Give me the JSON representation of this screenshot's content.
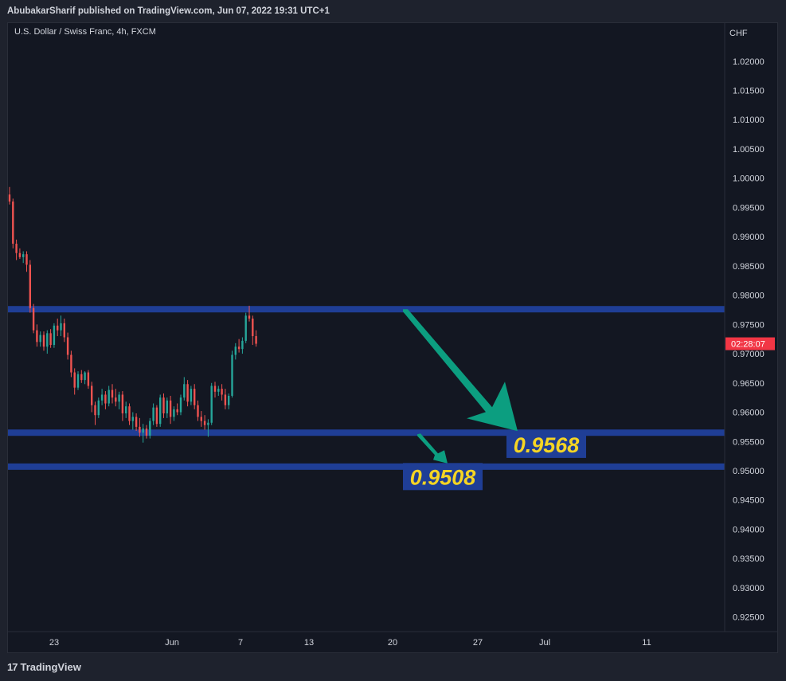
{
  "header": {
    "published_by": "AbubakarSharif published on TradingView.com, Jun 07, 2022 19:31 UTC+1"
  },
  "symbol": {
    "title": "U.S. Dollar / Swiss Franc, 4h, FXCM"
  },
  "footer": {
    "logo_icon": "tradingview-logo-icon",
    "brand": "TradingView",
    "logo_glyph": "17"
  },
  "chart_data": {
    "type": "candlestick",
    "currency": "CHF",
    "ylim": [
      0.9225,
      1.0265
    ],
    "y_ticks": [
      "1.02000",
      "1.01500",
      "1.01000",
      "1.00500",
      "1.00000",
      "0.99500",
      "0.99000",
      "0.98500",
      "0.98000",
      "0.97500",
      "0.97000",
      "0.96500",
      "0.96000",
      "0.95500",
      "0.95000",
      "0.94500",
      "0.94000",
      "0.93500",
      "0.93000",
      "0.92500"
    ],
    "x_ticks": [
      "23",
      "Jun",
      "7",
      "13",
      "20",
      "27",
      "Jul",
      "11"
    ],
    "countdown": {
      "label": "02:28:07",
      "price": 0.9717
    },
    "zones": [
      {
        "price": 0.9776,
        "color": "#1f3e96"
      },
      {
        "price": 0.9565,
        "color": "#1f3e96"
      },
      {
        "price": 0.9507,
        "color": "#1f3e96"
      }
    ],
    "annotations": [
      {
        "text": "0.9568",
        "price": 0.9545
      },
      {
        "text": "0.9508",
        "price": 0.949
      }
    ],
    "colors": {
      "up": "#26a69a",
      "down": "#ef5350",
      "arrow": "#0c9e80",
      "label_text": "#f5d523",
      "label_bg": "#1f3e96"
    },
    "candles": [
      {
        "o": 0.9972,
        "h": 0.9985,
        "l": 0.9955,
        "c": 0.996
      },
      {
        "o": 0.996,
        "h": 0.9965,
        "l": 0.988,
        "c": 0.9888
      },
      {
        "o": 0.9888,
        "h": 0.9895,
        "l": 0.986,
        "c": 0.9872
      },
      {
        "o": 0.9872,
        "h": 0.988,
        "l": 0.9862,
        "c": 0.9865
      },
      {
        "o": 0.9865,
        "h": 0.9875,
        "l": 0.9855,
        "c": 0.987
      },
      {
        "o": 0.987,
        "h": 0.9875,
        "l": 0.984,
        "c": 0.9852
      },
      {
        "o": 0.9852,
        "h": 0.986,
        "l": 0.977,
        "c": 0.9778
      },
      {
        "o": 0.9778,
        "h": 0.9785,
        "l": 0.9735,
        "c": 0.974
      },
      {
        "o": 0.974,
        "h": 0.975,
        "l": 0.9712,
        "c": 0.972
      },
      {
        "o": 0.972,
        "h": 0.9738,
        "l": 0.9712,
        "c": 0.9732
      },
      {
        "o": 0.9732,
        "h": 0.9738,
        "l": 0.9705,
        "c": 0.9712
      },
      {
        "o": 0.9712,
        "h": 0.974,
        "l": 0.97,
        "c": 0.9735
      },
      {
        "o": 0.9735,
        "h": 0.9742,
        "l": 0.971,
        "c": 0.9715
      },
      {
        "o": 0.9715,
        "h": 0.9752,
        "l": 0.971,
        "c": 0.9748
      },
      {
        "o": 0.9748,
        "h": 0.976,
        "l": 0.973,
        "c": 0.974
      },
      {
        "o": 0.974,
        "h": 0.9765,
        "l": 0.973,
        "c": 0.9752
      },
      {
        "o": 0.9752,
        "h": 0.976,
        "l": 0.972,
        "c": 0.9728
      },
      {
        "o": 0.9728,
        "h": 0.9736,
        "l": 0.969,
        "c": 0.9698
      },
      {
        "o": 0.9698,
        "h": 0.9705,
        "l": 0.966,
        "c": 0.9668
      },
      {
        "o": 0.9668,
        "h": 0.9675,
        "l": 0.963,
        "c": 0.9642
      },
      {
        "o": 0.9642,
        "h": 0.967,
        "l": 0.9638,
        "c": 0.9665
      },
      {
        "o": 0.9665,
        "h": 0.9672,
        "l": 0.965,
        "c": 0.9655
      },
      {
        "o": 0.9655,
        "h": 0.967,
        "l": 0.9648,
        "c": 0.9668
      },
      {
        "o": 0.9668,
        "h": 0.9672,
        "l": 0.964,
        "c": 0.9645
      },
      {
        "o": 0.9645,
        "h": 0.9652,
        "l": 0.96,
        "c": 0.9612
      },
      {
        "o": 0.9612,
        "h": 0.9618,
        "l": 0.9578,
        "c": 0.9595
      },
      {
        "o": 0.9595,
        "h": 0.9625,
        "l": 0.959,
        "c": 0.962
      },
      {
        "o": 0.962,
        "h": 0.964,
        "l": 0.9612,
        "c": 0.963
      },
      {
        "o": 0.963,
        "h": 0.9636,
        "l": 0.9605,
        "c": 0.9615
      },
      {
        "o": 0.9615,
        "h": 0.9645,
        "l": 0.961,
        "c": 0.9638
      },
      {
        "o": 0.9638,
        "h": 0.9648,
        "l": 0.9615,
        "c": 0.9625
      },
      {
        "o": 0.9625,
        "h": 0.964,
        "l": 0.961,
        "c": 0.9618
      },
      {
        "o": 0.9618,
        "h": 0.9635,
        "l": 0.9605,
        "c": 0.963
      },
      {
        "o": 0.963,
        "h": 0.9636,
        "l": 0.9585,
        "c": 0.9598
      },
      {
        "o": 0.9598,
        "h": 0.9618,
        "l": 0.959,
        "c": 0.961
      },
      {
        "o": 0.961,
        "h": 0.9615,
        "l": 0.9578,
        "c": 0.9585
      },
      {
        "o": 0.9585,
        "h": 0.96,
        "l": 0.957,
        "c": 0.9592
      },
      {
        "o": 0.9592,
        "h": 0.9598,
        "l": 0.9568,
        "c": 0.9575
      },
      {
        "o": 0.9575,
        "h": 0.959,
        "l": 0.9558,
        "c": 0.9565
      },
      {
        "o": 0.9565,
        "h": 0.958,
        "l": 0.9548,
        "c": 0.9572
      },
      {
        "o": 0.9572,
        "h": 0.9578,
        "l": 0.9555,
        "c": 0.956
      },
      {
        "o": 0.956,
        "h": 0.959,
        "l": 0.9555,
        "c": 0.9585
      },
      {
        "o": 0.9585,
        "h": 0.9615,
        "l": 0.9578,
        "c": 0.9608
      },
      {
        "o": 0.9608,
        "h": 0.9612,
        "l": 0.9575,
        "c": 0.958
      },
      {
        "o": 0.958,
        "h": 0.963,
        "l": 0.9575,
        "c": 0.9625
      },
      {
        "o": 0.9625,
        "h": 0.9632,
        "l": 0.959,
        "c": 0.9598
      },
      {
        "o": 0.9598,
        "h": 0.9625,
        "l": 0.959,
        "c": 0.962
      },
      {
        "o": 0.962,
        "h": 0.9628,
        "l": 0.958,
        "c": 0.9592
      },
      {
        "o": 0.9592,
        "h": 0.961,
        "l": 0.9585,
        "c": 0.9605
      },
      {
        "o": 0.9605,
        "h": 0.9615,
        "l": 0.9595,
        "c": 0.96
      },
      {
        "o": 0.96,
        "h": 0.963,
        "l": 0.9595,
        "c": 0.9625
      },
      {
        "o": 0.9625,
        "h": 0.966,
        "l": 0.962,
        "c": 0.9648
      },
      {
        "o": 0.9648,
        "h": 0.9655,
        "l": 0.961,
        "c": 0.9618
      },
      {
        "o": 0.9618,
        "h": 0.9645,
        "l": 0.9612,
        "c": 0.964
      },
      {
        "o": 0.964,
        "h": 0.9648,
        "l": 0.9605,
        "c": 0.9612
      },
      {
        "o": 0.9612,
        "h": 0.962,
        "l": 0.9585,
        "c": 0.9592
      },
      {
        "o": 0.9592,
        "h": 0.9602,
        "l": 0.9575,
        "c": 0.9585
      },
      {
        "o": 0.9585,
        "h": 0.9595,
        "l": 0.957,
        "c": 0.9578
      },
      {
        "o": 0.9578,
        "h": 0.9588,
        "l": 0.9558,
        "c": 0.9582
      },
      {
        "o": 0.9582,
        "h": 0.965,
        "l": 0.9578,
        "c": 0.9645
      },
      {
        "o": 0.9645,
        "h": 0.9652,
        "l": 0.9625,
        "c": 0.9635
      },
      {
        "o": 0.9635,
        "h": 0.9645,
        "l": 0.9628,
        "c": 0.964
      },
      {
        "o": 0.964,
        "h": 0.9648,
        "l": 0.962,
        "c": 0.963
      },
      {
        "o": 0.963,
        "h": 0.964,
        "l": 0.9605,
        "c": 0.9612
      },
      {
        "o": 0.9612,
        "h": 0.9632,
        "l": 0.9605,
        "c": 0.9628
      },
      {
        "o": 0.9628,
        "h": 0.9705,
        "l": 0.9625,
        "c": 0.9698
      },
      {
        "o": 0.9698,
        "h": 0.9718,
        "l": 0.969,
        "c": 0.9712
      },
      {
        "o": 0.9712,
        "h": 0.9725,
        "l": 0.9702,
        "c": 0.9708
      },
      {
        "o": 0.9708,
        "h": 0.9728,
        "l": 0.97,
        "c": 0.9722
      },
      {
        "o": 0.9722,
        "h": 0.977,
        "l": 0.9718,
        "c": 0.9765
      },
      {
        "o": 0.9765,
        "h": 0.9782,
        "l": 0.9755,
        "c": 0.976
      },
      {
        "o": 0.976,
        "h": 0.9765,
        "l": 0.9715,
        "c": 0.973
      },
      {
        "o": 0.973,
        "h": 0.974,
        "l": 0.9712,
        "c": 0.9717
      }
    ]
  }
}
